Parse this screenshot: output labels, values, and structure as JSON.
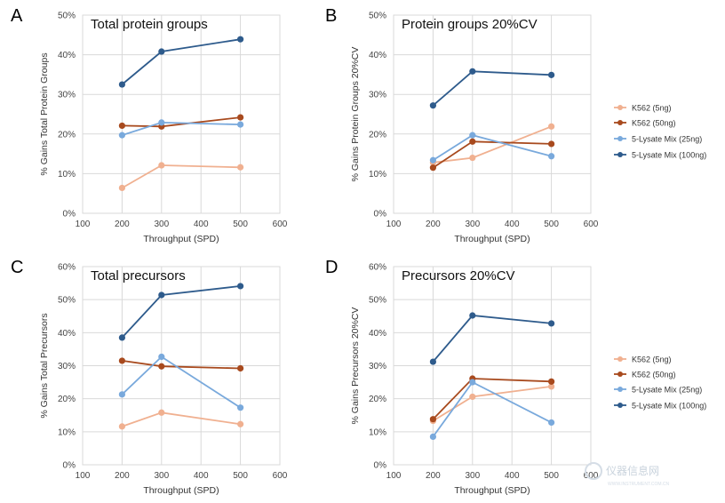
{
  "colors": {
    "k562_5": "#f0b090",
    "k562_50": "#a84a1e",
    "lys_25": "#79a9dc",
    "lys_100": "#2e5b8c"
  },
  "legend": {
    "top": [
      "K562 (5ng)",
      "K562 (50ng)",
      "5-Lysate Mix (25ng)",
      "5-Lysate Mix (100ng)"
    ],
    "bottom": [
      "K562 (5ng)",
      "K562 (50ng)",
      "5-Lysate Mix (25ng)",
      "5-Lysate Mix (100ng)"
    ]
  },
  "watermark": {
    "text": "仪器信息网",
    "sub": "WWW.INSTRUMENT.COM.CN"
  },
  "chart_data": [
    {
      "letter": "A",
      "type": "line",
      "title": "Total protein groups",
      "xlabel": "Throughput (SPD)",
      "ylabel": "% Gains Total Protein Groups",
      "xlim": [
        100,
        600
      ],
      "xticks": [
        "100",
        "200",
        "300",
        "400",
        "500",
        "600"
      ],
      "ylim": [
        0,
        0.5
      ],
      "yticks": [
        "0%",
        "10%",
        "20%",
        "30%",
        "40%",
        "50%"
      ],
      "x": [
        200,
        300,
        500
      ],
      "series": [
        {
          "name": "K562 (5ng)",
          "values": [
            0.064,
            0.121,
            0.116
          ]
        },
        {
          "name": "K562 (50ng)",
          "values": [
            0.221,
            0.219,
            0.242
          ]
        },
        {
          "name": "5-Lysate Mix (25ng)",
          "values": [
            0.197,
            0.229,
            0.224
          ]
        },
        {
          "name": "5-Lysate Mix (100ng)",
          "values": [
            0.325,
            0.408,
            0.439
          ]
        }
      ]
    },
    {
      "letter": "B",
      "type": "line",
      "title": "Protein groups 20%CV",
      "xlabel": "Throughput (SPD)",
      "ylabel": "% Gains Protein Groups 20%CV",
      "xlim": [
        100,
        600
      ],
      "xticks": [
        "100",
        "200",
        "300",
        "400",
        "500",
        "600"
      ],
      "ylim": [
        0,
        0.5
      ],
      "yticks": [
        "0%",
        "10%",
        "20%",
        "30%",
        "40%",
        "50%"
      ],
      "x": [
        200,
        300,
        500
      ],
      "series": [
        {
          "name": "K562 (5ng)",
          "values": [
            0.128,
            0.14,
            0.219
          ]
        },
        {
          "name": "K562 (50ng)",
          "values": [
            0.115,
            0.181,
            0.175
          ]
        },
        {
          "name": "5-Lysate Mix (25ng)",
          "values": [
            0.134,
            0.197,
            0.144
          ]
        },
        {
          "name": "5-Lysate Mix (100ng)",
          "values": [
            0.272,
            0.358,
            0.349
          ]
        }
      ]
    },
    {
      "letter": "C",
      "type": "line",
      "title": "Total precursors",
      "xlabel": "Throughput (SPD)",
      "ylabel": "% Gains Total Precursors",
      "xlim": [
        100,
        600
      ],
      "xticks": [
        "100",
        "200",
        "300",
        "400",
        "500",
        "600"
      ],
      "ylim": [
        0,
        0.6
      ],
      "yticks": [
        "0%",
        "10%",
        "20%",
        "30%",
        "40%",
        "50%",
        "60%"
      ],
      "x": [
        200,
        300,
        500
      ],
      "series": [
        {
          "name": "K562 (5ng)",
          "values": [
            0.116,
            0.158,
            0.123
          ]
        },
        {
          "name": "K562 (50ng)",
          "values": [
            0.315,
            0.298,
            0.292
          ]
        },
        {
          "name": "5-Lysate Mix (25ng)",
          "values": [
            0.213,
            0.327,
            0.173
          ]
        },
        {
          "name": "5-Lysate Mix (100ng)",
          "values": [
            0.385,
            0.514,
            0.541
          ]
        }
      ]
    },
    {
      "letter": "D",
      "type": "line",
      "title": "Precursors 20%CV",
      "xlabel": "Throughput (SPD)",
      "ylabel": "% Gains Precursors 20%CV",
      "xlim": [
        100,
        600
      ],
      "xticks": [
        "100",
        "200",
        "300",
        "400",
        "500",
        "600"
      ],
      "ylim": [
        0,
        0.6
      ],
      "yticks": [
        "0%",
        "10%",
        "20%",
        "30%",
        "40%",
        "50%",
        "60%"
      ],
      "x": [
        200,
        300,
        500
      ],
      "series": [
        {
          "name": "K562 (5ng)",
          "values": [
            0.133,
            0.206,
            0.237
          ]
        },
        {
          "name": "K562 (50ng)",
          "values": [
            0.138,
            0.261,
            0.252
          ]
        },
        {
          "name": "5-Lysate Mix (25ng)",
          "values": [
            0.085,
            0.25,
            0.128
          ]
        },
        {
          "name": "5-Lysate Mix (100ng)",
          "values": [
            0.312,
            0.452,
            0.428
          ]
        }
      ]
    }
  ]
}
